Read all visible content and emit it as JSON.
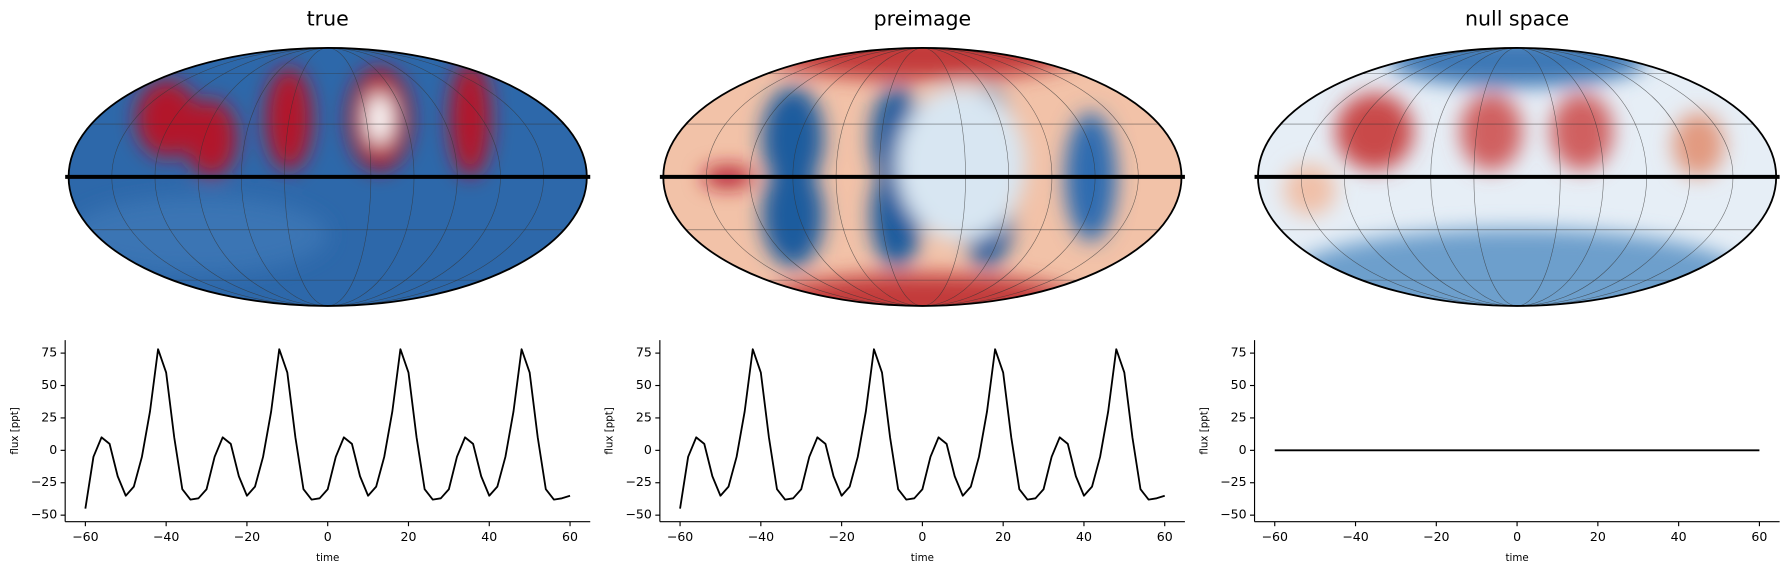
{
  "chart_data": [
    {
      "type": "map",
      "title": "true",
      "style": "true"
    },
    {
      "type": "map",
      "title": "preimage",
      "style": "preimage"
    },
    {
      "type": "map",
      "title": "null space",
      "style": "null"
    },
    {
      "type": "line",
      "xlabel": "time",
      "ylabel": "flux [ppt]",
      "color": "#000000",
      "x": [
        -60,
        -58,
        -56,
        -54,
        -52,
        -50,
        -48,
        -46,
        -44,
        -42,
        -40,
        -38,
        -36,
        -34,
        -32,
        -30,
        -28,
        -26,
        -24,
        -22,
        -20,
        -18,
        -16,
        -14,
        -12,
        -10,
        -8,
        -6,
        -4,
        -2,
        0,
        2,
        4,
        6,
        8,
        10,
        12,
        14,
        16,
        18,
        20,
        22,
        24,
        26,
        28,
        30,
        32,
        34,
        36,
        38,
        40,
        42,
        44,
        46,
        48,
        50,
        52,
        54,
        56,
        58,
        60
      ],
      "values": [
        -45,
        -5,
        10,
        5,
        -20,
        -35,
        -28,
        -5,
        30,
        78,
        60,
        10,
        -30,
        -38,
        -37,
        -30,
        -5,
        10,
        5,
        -20,
        -35,
        -28,
        -5,
        30,
        78,
        60,
        10,
        -30,
        -38,
        -37,
        -30,
        -5,
        10,
        5,
        -20,
        -35,
        -28,
        -5,
        30,
        78,
        60,
        10,
        -30,
        -38,
        -37,
        -30,
        -5,
        10,
        5,
        -20,
        -35,
        -28,
        -5,
        30,
        78,
        60,
        10,
        -30,
        -38,
        -37,
        -35
      ],
      "xlim": [
        -65,
        65
      ],
      "ylim": [
        -55,
        85
      ],
      "xticks": [
        {
          "value": -60,
          "label": "−60"
        },
        {
          "value": -40,
          "label": "−40"
        },
        {
          "value": -20,
          "label": "−20"
        },
        0,
        20,
        40,
        60
      ],
      "yticks": [
        {
          "value": -50,
          "label": "−50"
        },
        {
          "value": -25,
          "label": "−25"
        },
        0,
        25,
        50,
        75
      ]
    },
    {
      "type": "line",
      "xlabel": "time",
      "ylabel": "flux [ppt]",
      "color": "#000000",
      "x": [
        -60,
        -58,
        -56,
        -54,
        -52,
        -50,
        -48,
        -46,
        -44,
        -42,
        -40,
        -38,
        -36,
        -34,
        -32,
        -30,
        -28,
        -26,
        -24,
        -22,
        -20,
        -18,
        -16,
        -14,
        -12,
        -10,
        -8,
        -6,
        -4,
        -2,
        0,
        2,
        4,
        6,
        8,
        10,
        12,
        14,
        16,
        18,
        20,
        22,
        24,
        26,
        28,
        30,
        32,
        34,
        36,
        38,
        40,
        42,
        44,
        46,
        48,
        50,
        52,
        54,
        56,
        58,
        60
      ],
      "values": [
        -45,
        -5,
        10,
        5,
        -20,
        -35,
        -28,
        -5,
        30,
        78,
        60,
        10,
        -30,
        -38,
        -37,
        -30,
        -5,
        10,
        5,
        -20,
        -35,
        -28,
        -5,
        30,
        78,
        60,
        10,
        -30,
        -38,
        -37,
        -30,
        -5,
        10,
        5,
        -20,
        -35,
        -28,
        -5,
        30,
        78,
        60,
        10,
        -30,
        -38,
        -37,
        -30,
        -5,
        10,
        5,
        -20,
        -35,
        -28,
        -5,
        30,
        78,
        60,
        10,
        -30,
        -38,
        -37,
        -35
      ],
      "xlim": [
        -65,
        65
      ],
      "ylim": [
        -55,
        85
      ],
      "xticks": [
        {
          "value": -60,
          "label": "−60"
        },
        {
          "value": -40,
          "label": "−40"
        },
        {
          "value": -20,
          "label": "−20"
        },
        0,
        20,
        40,
        60
      ],
      "yticks": [
        {
          "value": -50,
          "label": "−50"
        },
        {
          "value": -25,
          "label": "−25"
        },
        0,
        25,
        50,
        75
      ]
    },
    {
      "type": "line",
      "xlabel": "time",
      "ylabel": "flux [ppt]",
      "color": "#000000",
      "x": [
        -60,
        60
      ],
      "values": [
        0,
        0
      ],
      "xlim": [
        -65,
        65
      ],
      "ylim": [
        -55,
        85
      ],
      "xticks": [
        {
          "value": -60,
          "label": "−60"
        },
        {
          "value": -40,
          "label": "−40"
        },
        {
          "value": -20,
          "label": "−20"
        },
        0,
        20,
        40,
        60
      ],
      "yticks": [
        {
          "value": -50,
          "label": "−50"
        },
        {
          "value": -25,
          "label": "−25"
        },
        0,
        25,
        50,
        75
      ]
    }
  ]
}
